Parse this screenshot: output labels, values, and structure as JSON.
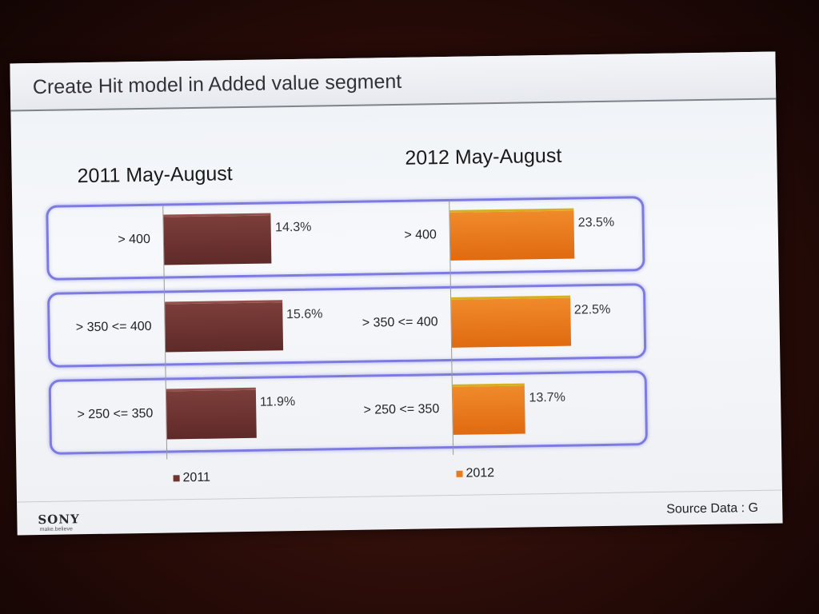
{
  "slide": {
    "title": "Create Hit model in Added value segment",
    "brand": "SONY",
    "tagline": "make.believe",
    "source": "Source Data : G"
  },
  "chart_data": [
    {
      "type": "bar",
      "orientation": "horizontal",
      "title": "2011 May-August",
      "categories": [
        "> 400",
        "> 350 <= 400",
        "> 250 <= 350"
      ],
      "series": [
        {
          "name": "2011",
          "values": [
            14.3,
            15.6,
            11.9
          ]
        }
      ],
      "value_labels": [
        "14.3%",
        "15.6%",
        "11.9%"
      ],
      "xlim": [
        0,
        30
      ],
      "legend_position": "bottom",
      "color": "#6e3432"
    },
    {
      "type": "bar",
      "orientation": "horizontal",
      "title": "2012 May-August",
      "categories": [
        "> 400",
        "> 350 <= 400",
        "> 250 <= 350"
      ],
      "series": [
        {
          "name": "2012",
          "values": [
            23.5,
            22.5,
            13.7
          ]
        }
      ],
      "value_labels": [
        "23.5%",
        "22.5%",
        "13.7%"
      ],
      "xlim": [
        0,
        30
      ],
      "legend_position": "bottom",
      "color": "#ea7a1c"
    }
  ]
}
